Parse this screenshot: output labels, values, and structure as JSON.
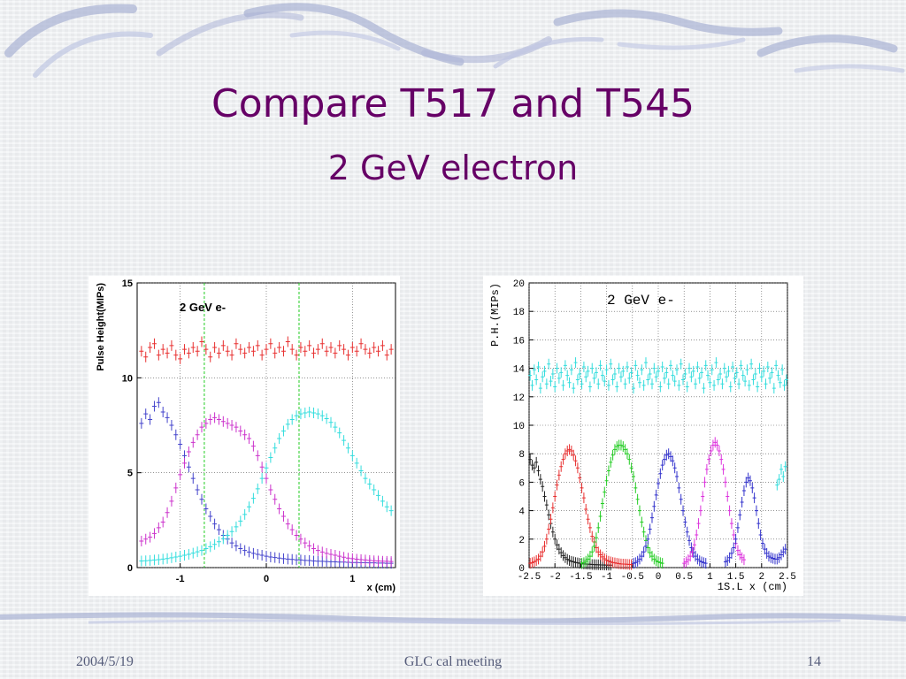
{
  "slide": {
    "title": "Compare T517 and T545",
    "subtitle": "2 GeV electron",
    "footer_date": "2004/5/19",
    "footer_meeting": "GLC cal meeting",
    "footer_page": "14",
    "title_color": "#660066"
  },
  "chart_data": [
    {
      "type": "scatter",
      "annotation": "2 GeV e-",
      "ylabel": "Pulse Height(MIPs)",
      "xlabel": "x (cm)",
      "xlim": [
        -1.5,
        1.5
      ],
      "ylim": [
        0,
        15
      ],
      "xticks": [
        "-1",
        "0",
        "1"
      ],
      "yticks": [
        "0",
        "5",
        "10",
        "15"
      ],
      "xtick_values": [
        -1,
        0,
        1
      ],
      "ytick_values": [
        0,
        5,
        10,
        15
      ],
      "grid": true,
      "vlines": [
        -0.72,
        0.38
      ],
      "vline_color": "#22cc22",
      "series": [
        {
          "color": "#e83030",
          "x_start": -1.45,
          "x_step": 0.05,
          "values": [
            11.4,
            11.1,
            11.6,
            11.8,
            11.2,
            11.5,
            11.3,
            11.7,
            11.2,
            11.0,
            11.5,
            11.3,
            11.6,
            11.4,
            11.9,
            11.5,
            11.1,
            11.6,
            11.3,
            11.7,
            11.4,
            11.2,
            11.8,
            11.5,
            11.3,
            11.6,
            11.4,
            11.7,
            11.2,
            11.5,
            11.8,
            11.3,
            11.6,
            11.4,
            11.9,
            11.5,
            11.2,
            11.6,
            11.4,
            11.7,
            11.3,
            11.5,
            11.8,
            11.4,
            11.6,
            11.3,
            11.7,
            11.5,
            11.2,
            11.6,
            11.4,
            11.8,
            11.5,
            11.3,
            11.6,
            11.4,
            11.7,
            11.2,
            11.5,
            11.3
          ]
        },
        {
          "color": "#4444cc",
          "x_start": -1.45,
          "x_step": 0.05,
          "values": [
            7.6,
            8.1,
            7.8,
            8.5,
            8.7,
            8.2,
            7.9,
            7.5,
            7.0,
            6.5,
            5.9,
            5.3,
            4.7,
            4.1,
            3.6,
            3.1,
            2.7,
            2.3,
            2.0,
            1.7,
            1.5,
            1.3,
            1.15,
            1.0,
            0.9,
            0.82,
            0.75,
            0.7,
            0.65,
            0.6,
            0.56,
            0.53,
            0.5,
            0.47,
            0.45,
            0.43,
            0.41,
            0.4,
            0.38,
            0.37,
            0.35,
            0.34,
            0.33,
            0.32,
            0.31,
            0.3,
            0.29,
            0.29,
            0.28,
            0.27,
            0.27,
            0.26,
            0.26,
            0.25,
            0.25,
            0.24,
            0.24,
            0.23,
            0.23,
            0.22
          ]
        },
        {
          "color": "#cc33cc",
          "x_start": -1.45,
          "x_step": 0.05,
          "values": [
            1.4,
            1.5,
            1.6,
            1.8,
            2.1,
            2.4,
            2.9,
            3.5,
            4.2,
            4.9,
            5.5,
            6.1,
            6.6,
            7.0,
            7.4,
            7.6,
            7.8,
            7.9,
            7.8,
            7.7,
            7.6,
            7.5,
            7.4,
            7.2,
            7.0,
            6.8,
            6.4,
            5.9,
            5.3,
            4.7,
            4.1,
            3.6,
            3.1,
            2.7,
            2.3,
            2.0,
            1.7,
            1.5,
            1.3,
            1.15,
            1.0,
            0.9,
            0.82,
            0.75,
            0.7,
            0.65,
            0.6,
            0.55,
            0.5,
            0.47,
            0.44,
            0.42,
            0.4,
            0.38,
            0.36,
            0.35,
            0.34,
            0.33,
            0.32,
            0.31
          ]
        },
        {
          "color": "#33dddd",
          "x_start": -1.45,
          "x_step": 0.05,
          "values": [
            0.35,
            0.36,
            0.38,
            0.4,
            0.42,
            0.45,
            0.48,
            0.52,
            0.56,
            0.6,
            0.65,
            0.7,
            0.76,
            0.83,
            0.9,
            1.0,
            1.1,
            1.22,
            1.36,
            1.52,
            1.7,
            1.9,
            2.15,
            2.45,
            2.8,
            3.2,
            3.65,
            4.15,
            4.7,
            5.25,
            5.8,
            6.3,
            6.8,
            7.2,
            7.55,
            7.8,
            8.0,
            8.1,
            8.15,
            8.2,
            8.15,
            8.1,
            8.0,
            7.85,
            7.65,
            7.4,
            7.1,
            6.7,
            6.3,
            5.9,
            5.5,
            5.1,
            4.7,
            4.4,
            4.1,
            3.8,
            3.5,
            3.2,
            3.0,
            2.8
          ]
        }
      ]
    },
    {
      "type": "scatter",
      "annotation": "2 GeV e-",
      "ylabel": "P.H.(MIPs)",
      "xlabel": "1S.L x (cm)",
      "xlim": [
        -2.5,
        2.5
      ],
      "ylim": [
        0,
        20
      ],
      "xticks": [
        "-2.5",
        "-2",
        "-1.5",
        "-1",
        "-0.5",
        "0",
        "0.5",
        "1",
        "1.5",
        "2",
        "2.5"
      ],
      "yticks": [
        "0",
        "2",
        "4",
        "6",
        "8",
        "10",
        "12",
        "14",
        "16",
        "18",
        "20"
      ],
      "xtick_values": [
        -2.5,
        -2,
        -1.5,
        -1,
        -0.5,
        0,
        0.5,
        1,
        1.5,
        2,
        2.5
      ],
      "ytick_values": [
        0,
        2,
        4,
        6,
        8,
        10,
        12,
        14,
        16,
        18,
        20
      ],
      "grid": true,
      "series": [
        {
          "color": "#33dddd",
          "x_start": -2.48,
          "x_step": 0.04,
          "values": [
            13.5,
            12.8,
            13.9,
            13.2,
            14.1,
            12.6,
            13.4,
            13.8,
            12.9,
            14.3,
            13.1,
            13.6,
            12.7,
            14.0,
            13.3,
            13.7,
            12.8,
            14.2,
            13.5,
            13.0,
            13.9,
            12.6,
            14.4,
            13.2,
            13.6,
            12.9,
            14.1,
            13.4,
            13.8,
            12.7,
            14.0,
            13.3,
            13.7,
            12.9,
            14.2,
            13.5,
            13.1,
            13.9,
            12.8,
            14.3,
            13.2,
            13.6,
            12.7,
            14.0,
            13.4,
            13.8,
            12.9,
            14.1,
            13.3,
            13.7,
            12.6,
            14.2,
            13.5,
            13.0,
            13.9,
            12.8,
            14.4,
            13.2,
            13.6,
            12.9,
            14.0,
            13.4,
            13.8,
            12.7,
            14.1,
            13.3,
            13.7,
            12.9,
            14.2,
            13.5,
            13.1,
            13.9,
            12.8,
            14.3,
            13.2,
            13.6,
            12.7,
            14.0,
            13.4,
            13.8,
            12.9,
            14.1,
            13.3,
            13.7,
            12.6,
            14.2,
            13.5,
            13.0,
            13.9,
            12.8,
            14.4,
            13.2,
            13.6,
            12.9,
            14.0,
            13.4,
            13.8,
            12.7,
            14.1,
            13.3,
            13.7,
            12.9,
            14.2,
            13.5,
            13.1,
            13.9,
            12.8,
            14.3,
            13.2,
            13.6,
            12.7,
            14.0,
            13.4,
            13.8,
            12.9,
            14.1,
            13.3,
            13.7,
            12.6,
            14.2,
            13.5,
            13.0,
            13.9,
            12.8,
            13.2
          ]
        },
        {
          "color": "#222222",
          "x_start": -2.48,
          "x_step": 0.04,
          "count_note": "",
          "values": [
            7.6,
            7.2,
            7.0,
            7.4,
            6.8,
            6.2,
            5.7,
            5.0,
            4.4,
            3.7,
            3.1,
            2.5,
            2.0,
            1.6,
            1.3,
            1.05,
            0.85,
            0.7,
            0.58,
            0.5,
            0.44,
            0.4,
            0.36,
            0.33,
            0.3,
            0.28,
            0.26,
            0.25,
            0.24,
            0.23,
            0.22,
            0.21,
            0.2,
            0.2,
            0.19,
            0.19,
            0.18,
            0.18,
            0.17,
            0.17
          ]
        },
        {
          "color": "#e83030",
          "x_start": -2.48,
          "x_step": 0.04,
          "values": [
            0.3,
            0.35,
            0.4,
            0.5,
            0.6,
            0.8,
            1.1,
            1.5,
            2.0,
            2.7,
            3.4,
            4.2,
            5.0,
            5.8,
            6.5,
            7.1,
            7.6,
            8.0,
            8.2,
            8.3,
            8.2,
            7.9,
            7.5,
            7.0,
            6.3,
            5.6,
            4.9,
            4.1,
            3.4,
            2.8,
            2.2,
            1.8,
            1.4,
            1.1,
            0.9,
            0.75,
            0.62,
            0.52,
            0.45,
            0.4,
            0.36,
            0.33,
            0.3,
            0.28,
            0.26,
            0.25,
            0.24,
            0.23,
            0.22,
            0.21
          ]
        },
        {
          "color": "#22cc22",
          "x_start": -1.48,
          "x_step": 0.04,
          "values": [
            0.3,
            0.35,
            0.45,
            0.6,
            0.8,
            1.1,
            1.5,
            2.1,
            2.8,
            3.6,
            4.5,
            5.3,
            6.1,
            6.8,
            7.4,
            7.9,
            8.3,
            8.5,
            8.6,
            8.6,
            8.5,
            8.3,
            8.0,
            7.6,
            7.0,
            6.4,
            5.6,
            4.8,
            4.0,
            3.2,
            2.5,
            1.9,
            1.4,
            1.05,
            0.8,
            0.6,
            0.48,
            0.4,
            0.35,
            0.3
          ]
        },
        {
          "color": "#3333cc",
          "x_start": -0.48,
          "x_step": 0.04,
          "values": [
            0.3,
            0.35,
            0.45,
            0.6,
            0.8,
            1.1,
            1.5,
            2.0,
            2.7,
            3.5,
            4.3,
            5.1,
            5.9,
            6.6,
            7.2,
            7.6,
            7.9,
            8.0,
            7.8,
            7.5,
            7.0,
            6.4,
            5.6,
            4.8,
            4.0,
            3.2,
            2.5,
            1.9,
            1.4,
            1.05,
            0.8,
            0.6,
            0.48,
            0.4,
            0.35,
            0.3
          ]
        },
        {
          "color": "#dd33dd",
          "x_start": 0.5,
          "x_step": 0.04,
          "values": [
            0.3,
            0.4,
            0.55,
            0.8,
            1.1,
            1.6,
            2.3,
            3.1,
            4.0,
            5.0,
            6.0,
            6.9,
            7.6,
            8.2,
            8.6,
            8.8,
            8.6,
            8.2,
            7.6,
            6.9,
            6.0,
            5.0,
            4.0,
            3.1,
            2.3,
            1.7,
            1.2,
            0.9,
            0.7,
            0.55
          ]
        },
        {
          "color": "#3333cc",
          "x_start": 1.3,
          "x_step": 0.04,
          "values": [
            0.4,
            0.5,
            0.7,
            1.0,
            1.4,
            2.0,
            2.8,
            3.7,
            4.6,
            5.4,
            6.0,
            6.3,
            6.1,
            5.6,
            4.9,
            4.0,
            3.1,
            2.3,
            1.7,
            1.3,
            1.0,
            0.8,
            0.7,
            0.65,
            0.6,
            0.6,
            0.7,
            0.9,
            1.1,
            1.3
          ]
        },
        {
          "color": "#33dddd",
          "x_start": 2.3,
          "x_step": 0.04,
          "values": [
            5.8,
            6.2,
            6.9,
            6.4,
            7.1
          ]
        }
      ]
    }
  ]
}
